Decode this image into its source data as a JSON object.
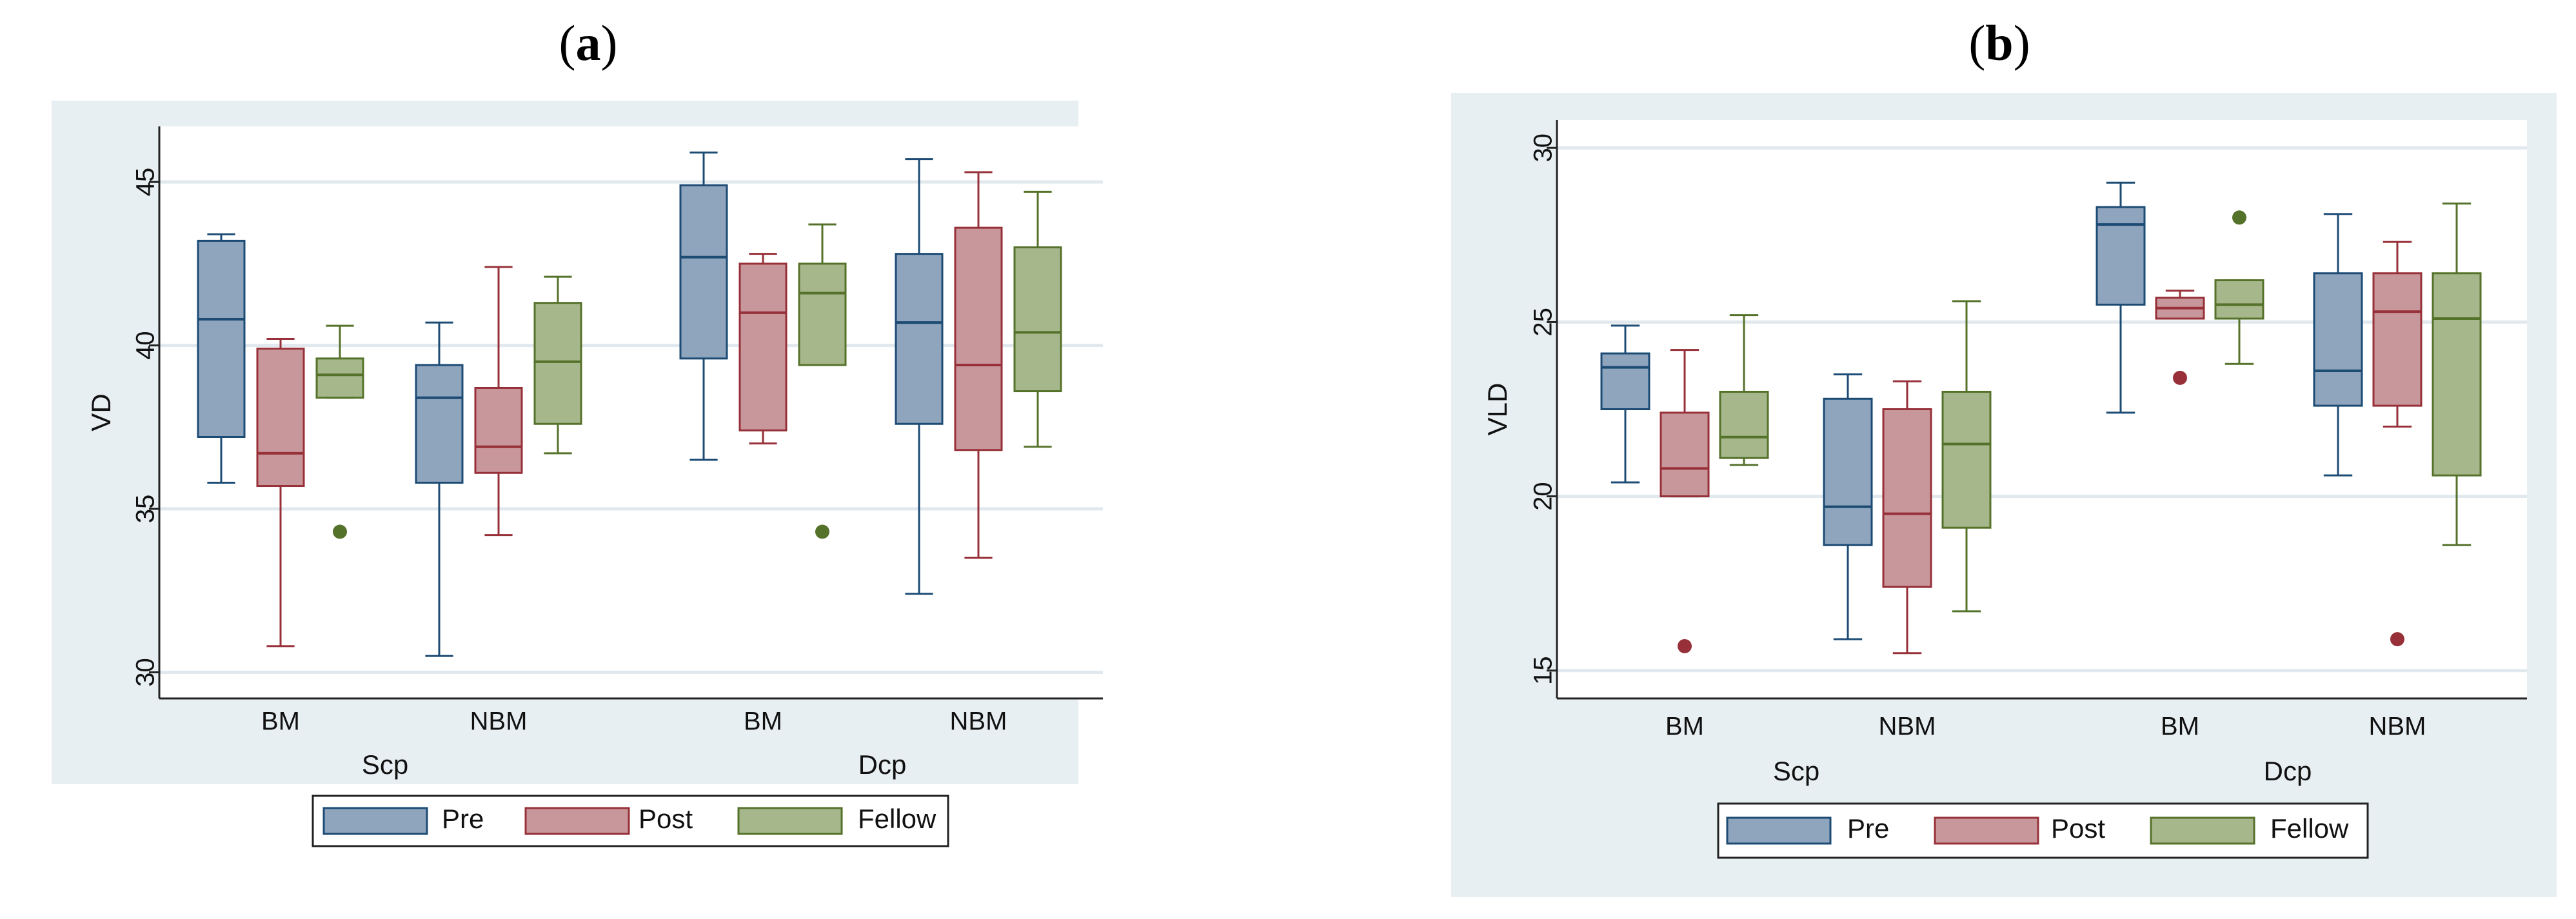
{
  "panels": [
    {
      "label_open": "(",
      "label_letter": "a",
      "label_close": ")"
    },
    {
      "label_open": "(",
      "label_letter": "b",
      "label_close": ")"
    }
  ],
  "colors": {
    "panel_bg": "#e7eff3",
    "plot_bg": "#ffffff",
    "grid": "#e1e9ee",
    "axis": "#222222",
    "Pre": {
      "fill": "#8fa4bd",
      "stroke": "#1c4b74"
    },
    "Post": {
      "fill": "#c8979b",
      "stroke": "#973038"
    },
    "Fellow": {
      "fill": "#a7b78c",
      "stroke": "#55722a"
    }
  },
  "chart_data": [
    {
      "type": "boxplot",
      "panel": "(a)",
      "ylabel": "VD",
      "xlabel": "",
      "ylim": [
        29.2,
        46.7
      ],
      "yticks": [
        30,
        35,
        40,
        45
      ],
      "group_labels": [
        "BM",
        "NBM",
        "BM",
        "NBM"
      ],
      "supergroup_labels": [
        "Scp",
        "Dcp"
      ],
      "legend": {
        "position": "bottom",
        "entries": [
          "Pre",
          "Post",
          "Fellow"
        ]
      },
      "groups": [
        {
          "label": "BM",
          "supergroup": "Scp",
          "boxes": [
            {
              "series": "Pre",
              "whisker_low": 35.8,
              "q1": 37.2,
              "median": 40.8,
              "q3": 43.2,
              "whisker_high": 43.4,
              "outliers": []
            },
            {
              "series": "Post",
              "whisker_low": 30.8,
              "q1": 35.7,
              "median": 36.7,
              "q3": 39.9,
              "whisker_high": 40.2,
              "outliers": []
            },
            {
              "series": "Fellow",
              "whisker_low": 38.4,
              "q1": 38.4,
              "median": 39.1,
              "q3": 39.6,
              "whisker_high": 40.6,
              "outliers": [
                34.3
              ]
            }
          ]
        },
        {
          "label": "NBM",
          "supergroup": "Scp",
          "boxes": [
            {
              "series": "Pre",
              "whisker_low": 30.5,
              "q1": 35.8,
              "median": 38.4,
              "q3": 39.4,
              "whisker_high": 40.7,
              "outliers": []
            },
            {
              "series": "Post",
              "whisker_low": 34.2,
              "q1": 36.1,
              "median": 36.9,
              "q3": 38.7,
              "whisker_high": 42.4,
              "outliers": []
            },
            {
              "series": "Fellow",
              "whisker_low": 36.7,
              "q1": 37.6,
              "median": 39.5,
              "q3": 41.3,
              "whisker_high": 42.1,
              "outliers": []
            }
          ]
        },
        {
          "label": "BM",
          "supergroup": "Dcp",
          "boxes": [
            {
              "series": "Pre",
              "whisker_low": 36.5,
              "q1": 39.6,
              "median": 42.7,
              "q3": 44.9,
              "whisker_high": 45.9,
              "outliers": []
            },
            {
              "series": "Post",
              "whisker_low": 37.0,
              "q1": 37.4,
              "median": 41.0,
              "q3": 42.5,
              "whisker_high": 42.8,
              "outliers": []
            },
            {
              "series": "Fellow",
              "whisker_low": 39.4,
              "q1": 39.4,
              "median": 41.6,
              "q3": 42.5,
              "whisker_high": 43.7,
              "outliers": [
                34.3
              ]
            }
          ]
        },
        {
          "label": "NBM",
          "supergroup": "Dcp",
          "boxes": [
            {
              "series": "Pre",
              "whisker_low": 32.4,
              "q1": 37.6,
              "median": 40.7,
              "q3": 42.8,
              "whisker_high": 45.7,
              "outliers": []
            },
            {
              "series": "Post",
              "whisker_low": 33.5,
              "q1": 36.8,
              "median": 39.4,
              "q3": 43.6,
              "whisker_high": 45.3,
              "outliers": []
            },
            {
              "series": "Fellow",
              "whisker_low": 36.9,
              "q1": 38.6,
              "median": 40.4,
              "q3": 43.0,
              "whisker_high": 44.7,
              "outliers": []
            }
          ]
        }
      ]
    },
    {
      "type": "boxplot",
      "panel": "(b)",
      "ylabel": "VLD",
      "xlabel": "",
      "ylim": [
        14.2,
        30.8
      ],
      "yticks": [
        15,
        20,
        25,
        30
      ],
      "group_labels": [
        "BM",
        "NBM",
        "BM",
        "NBM"
      ],
      "supergroup_labels": [
        "Scp",
        "Dcp"
      ],
      "legend": {
        "position": "bottom",
        "entries": [
          "Pre",
          "Post",
          "Fellow"
        ]
      },
      "groups": [
        {
          "label": "BM",
          "supergroup": "Scp",
          "boxes": [
            {
              "series": "Pre",
              "whisker_low": 20.4,
              "q1": 22.5,
              "median": 23.7,
              "q3": 24.1,
              "whisker_high": 24.9,
              "outliers": []
            },
            {
              "series": "Post",
              "whisker_low": 20.0,
              "q1": 20.0,
              "median": 20.8,
              "q3": 22.4,
              "whisker_high": 24.2,
              "outliers": [
                15.7
              ]
            },
            {
              "series": "Fellow",
              "whisker_low": 20.9,
              "q1": 21.1,
              "median": 21.7,
              "q3": 23.0,
              "whisker_high": 25.2,
              "outliers": []
            }
          ]
        },
        {
          "label": "NBM",
          "supergroup": "Scp",
          "boxes": [
            {
              "series": "Pre",
              "whisker_low": 15.9,
              "q1": 18.6,
              "median": 19.7,
              "q3": 22.8,
              "whisker_high": 23.5,
              "outliers": []
            },
            {
              "series": "Post",
              "whisker_low": 15.5,
              "q1": 17.4,
              "median": 19.5,
              "q3": 22.5,
              "whisker_high": 23.3,
              "outliers": []
            },
            {
              "series": "Fellow",
              "whisker_low": 16.7,
              "q1": 19.1,
              "median": 21.5,
              "q3": 23.0,
              "whisker_high": 25.6,
              "outliers": []
            }
          ]
        },
        {
          "label": "BM",
          "supergroup": "Dcp",
          "boxes": [
            {
              "series": "Pre",
              "whisker_low": 22.4,
              "q1": 25.5,
              "median": 27.8,
              "q3": 28.3,
              "whisker_high": 29.0,
              "outliers": []
            },
            {
              "series": "Post",
              "whisker_low": 25.1,
              "q1": 25.1,
              "median": 25.4,
              "q3": 25.7,
              "whisker_high": 25.9,
              "outliers": [
                23.4
              ]
            },
            {
              "series": "Fellow",
              "whisker_low": 23.8,
              "q1": 25.1,
              "median": 25.5,
              "q3": 26.2,
              "whisker_high": 26.2,
              "outliers": [
                28.0
              ]
            }
          ]
        },
        {
          "label": "NBM",
          "supergroup": "Dcp",
          "boxes": [
            {
              "series": "Pre",
              "whisker_low": 20.6,
              "q1": 22.6,
              "median": 23.6,
              "q3": 26.4,
              "whisker_high": 28.1,
              "outliers": []
            },
            {
              "series": "Post",
              "whisker_low": 22.0,
              "q1": 22.6,
              "median": 25.3,
              "q3": 26.4,
              "whisker_high": 27.3,
              "outliers": [
                15.9
              ]
            },
            {
              "series": "Fellow",
              "whisker_low": 18.6,
              "q1": 20.6,
              "median": 25.1,
              "q3": 26.4,
              "whisker_high": 28.4,
              "outliers": []
            }
          ]
        }
      ]
    }
  ]
}
